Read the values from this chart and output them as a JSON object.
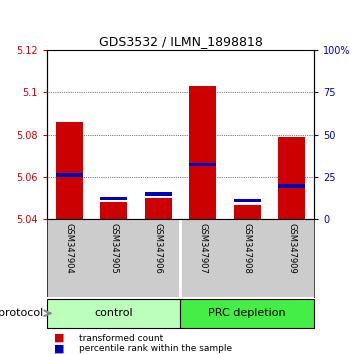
{
  "title": "GDS3532 / ILMN_1898818",
  "samples": [
    "GSM347904",
    "GSM347905",
    "GSM347906",
    "GSM347907",
    "GSM347908",
    "GSM347909"
  ],
  "groups": [
    "control",
    "control",
    "control",
    "PRC depletion",
    "PRC depletion",
    "PRC depletion"
  ],
  "red_values": [
    5.086,
    5.048,
    5.05,
    5.103,
    5.047,
    5.079
  ],
  "blue_values": [
    5.06,
    5.049,
    5.051,
    5.065,
    5.048,
    5.055
  ],
  "ymin": 5.04,
  "ymax": 5.12,
  "yticks_left": [
    5.04,
    5.06,
    5.08,
    5.1,
    5.12
  ],
  "yticks_right": [
    0,
    25,
    50,
    75,
    100
  ],
  "ytick_labels_left": [
    "5.04",
    "5.06",
    "5.08",
    "5.1",
    "5.12"
  ],
  "ytick_labels_right": [
    "0",
    "25",
    "50",
    "75",
    "100%"
  ],
  "bar_width": 0.6,
  "red_color": "#cc0000",
  "blue_color": "#0000bb",
  "control_color": "#bbffbb",
  "prc_color": "#44ee44",
  "group_bg_color": "#cccccc",
  "plot_bg_color": "#ffffff",
  "control_label": "control",
  "prc_label": "PRC depletion",
  "protocol_label": "protocol",
  "legend_red": "transformed count",
  "legend_blue": "percentile rank within the sample"
}
